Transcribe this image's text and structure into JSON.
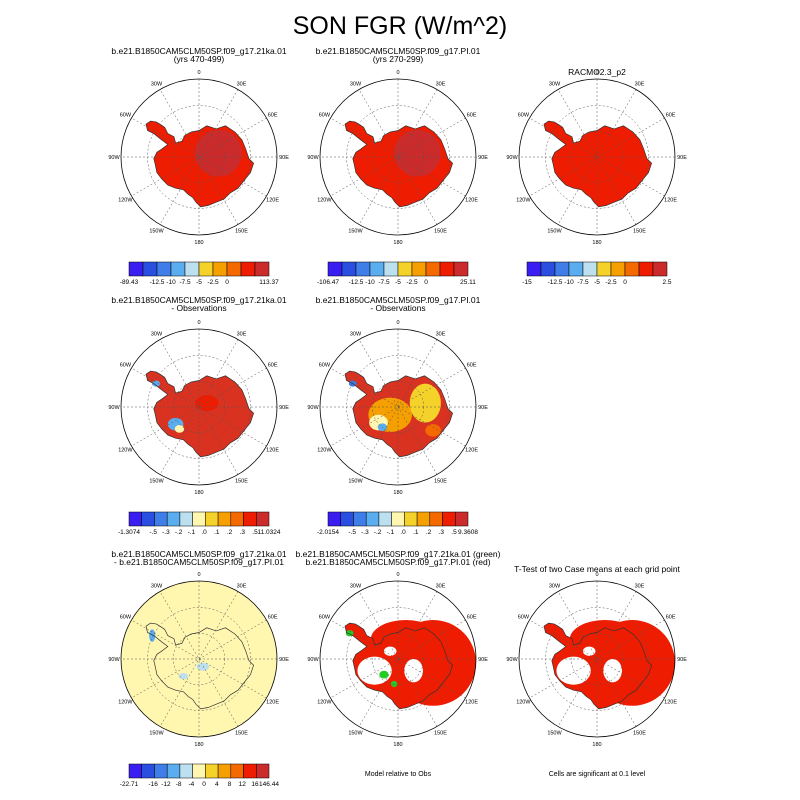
{
  "figure_title": "SON FGR (W/m^2)",
  "panels": [
    {
      "title1": "b.e21.B1850CAM5CLM50SP.f09_g17.21ka.01",
      "title2": "(yrs 470-499)",
      "style": "red",
      "colorbar": {
        "colors": [
          "#3a1df0",
          "#2a4fe0",
          "#3f7de8",
          "#5aaef0",
          "#bde0f0",
          "#f5d22a",
          "#f5a000",
          "#f56a00",
          "#ee1c00",
          "#cc2b2b"
        ],
        "labels": [
          "-89.43",
          "-12.5",
          "-10",
          "-7.5",
          "-5",
          "-2.5",
          "0",
          "113.37"
        ]
      }
    },
    {
      "title1": "b.e21.B1850CAM5CLM50SP.f09_g17.PI.01",
      "title2": "(yrs 270-299)",
      "style": "red",
      "colorbar": {
        "colors": [
          "#3a1df0",
          "#2a4fe0",
          "#3f7de8",
          "#5aaef0",
          "#bde0f0",
          "#f5d22a",
          "#f5a000",
          "#f56a00",
          "#ee1c00",
          "#cc2b2b"
        ],
        "labels": [
          "-106.47",
          "-12.5",
          "-10",
          "-7.5",
          "-5",
          "-2.5",
          "0",
          "25.11"
        ]
      }
    },
    {
      "title1": "RACMO2.3_p2",
      "title2": "",
      "style": "red",
      "colorbar": {
        "colors": [
          "#3a1df0",
          "#2a4fe0",
          "#3f7de8",
          "#5aaef0",
          "#bde0f0",
          "#f5d22a",
          "#f5a000",
          "#f56a00",
          "#ee1c00",
          "#cc2b2b"
        ],
        "labels": [
          "-15",
          "-12.5",
          "-10",
          "-7.5",
          "-5",
          "-2.5",
          "0",
          "2.5"
        ]
      }
    },
    {
      "title1": "b.e21.B1850CAM5CLM50SP.f09_g17.21ka.01",
      "title2": "- Observations",
      "style": "diff",
      "colorbar": {
        "colors": [
          "#3a1df0",
          "#2a4fe0",
          "#3f7de8",
          "#5aaef0",
          "#bde0f0",
          "#fff7b0",
          "#f5d22a",
          "#f5a000",
          "#f56a00",
          "#ee1c00",
          "#cc2b2b"
        ],
        "labels": [
          "-1.3074",
          "-.5",
          "-.3",
          "-.2",
          "-.1",
          ".0",
          ".1",
          ".2",
          ".3",
          ".5",
          "11.0324"
        ]
      }
    },
    {
      "title1": "b.e21.B1850CAM5CLM50SP.f09_g17.PI.01",
      "title2": "- Observations",
      "style": "diff2",
      "colorbar": {
        "colors": [
          "#3a1df0",
          "#2a4fe0",
          "#3f7de8",
          "#5aaef0",
          "#bde0f0",
          "#fff7b0",
          "#f5d22a",
          "#f5a000",
          "#f56a00",
          "#ee1c00",
          "#cc2b2b"
        ],
        "labels": [
          "-2.0154",
          "-.5",
          "-.3",
          "-.2",
          "-.1",
          ".0",
          ".1",
          ".2",
          ".3",
          ".5",
          "9.3608"
        ]
      }
    },
    {
      "title1": "b.e21.B1850CAM5CLM50SP.f09_g17.21ka.01",
      "title2": "- b.e21.B1850CAM5CLM50SP.f09_g17.PI.01",
      "style": "yellow",
      "colorbar": {
        "colors": [
          "#3a1df0",
          "#2a4fe0",
          "#3f7de8",
          "#5aaef0",
          "#bde0f0",
          "#fff7b0",
          "#f5d22a",
          "#f5a000",
          "#f56a00",
          "#ee1c00",
          "#cc2b2b"
        ],
        "labels": [
          "-22.71",
          "-16",
          "-12",
          "-8",
          "-4",
          "0",
          "4",
          "8",
          "12",
          "16",
          "146.44"
        ]
      }
    },
    {
      "title1": "b.e21.B1850CAM5CLM50SP.f09_g17.21ka.01 (green)",
      "title2": "b.e21.B1850CAM5CLM50SP.f09_g17.PI.01 (red)",
      "style": "relobs",
      "note": "Model relative to Obs"
    },
    {
      "title1": "T-Test of two Case means at each grid point",
      "title2": "",
      "style": "ttest",
      "note": "Cells are significant at 0.1 level"
    }
  ],
  "map_labels": {
    "top": "0",
    "bottom": "180",
    "left": "90W",
    "right": "90E",
    "ul": "60W",
    "ur": "60E",
    "ll": "120W",
    "lr": "120E",
    "uul": "30W",
    "uur": "30E",
    "lll": "150W",
    "llr": "150E"
  },
  "chart_data": {
    "type": "heatmap",
    "title": "SON FGR (W/m^2)",
    "panels": [
      {
        "title": "b.e21.B1850CAM5CLM50SP.f09_g17.21ka.01 (yrs 470-499)",
        "colorbar_min": -89.43,
        "colorbar_max": 113.37,
        "levels": [
          -12.5,
          -10,
          -7.5,
          -5,
          -2.5,
          0
        ]
      },
      {
        "title": "b.e21.B1850CAM5CLM50SP.f09_g17.PI.01 (yrs 270-299)",
        "colorbar_min": -106.47,
        "colorbar_max": 25.11,
        "levels": [
          -12.5,
          -10,
          -7.5,
          -5,
          -2.5,
          0
        ]
      },
      {
        "title": "RACMO2.3_p2",
        "levels": [
          -15,
          -12.5,
          -10,
          -7.5,
          -5,
          -2.5,
          0,
          2.5
        ]
      },
      {
        "title": "b.e21.B1850CAM5CLM50SP.f09_g17.21ka.01 - Observations",
        "colorbar_min": -1.3074,
        "colorbar_max": 11.0324,
        "levels": [
          -0.5,
          -0.3,
          -0.2,
          -0.1,
          0.0,
          0.1,
          0.2,
          0.3,
          0.5
        ]
      },
      {
        "title": "b.e21.B1850CAM5CLM50SP.f09_g17.PI.01 - Observations",
        "colorbar_min": -2.0154,
        "colorbar_max": 9.3608,
        "levels": [
          -0.5,
          -0.3,
          -0.2,
          -0.1,
          0.0,
          0.1,
          0.2,
          0.3,
          0.5
        ]
      },
      {
        "title": "b.e21.B1850CAM5CLM50SP.f09_g17.21ka.01 - b.e21.B1850CAM5CLM50SP.f09_g17.PI.01",
        "colorbar_min": -22.71,
        "colorbar_max": 146.44,
        "levels": [
          -16,
          -12,
          -8,
          -4,
          0,
          4,
          8,
          12,
          16
        ]
      }
    ]
  }
}
